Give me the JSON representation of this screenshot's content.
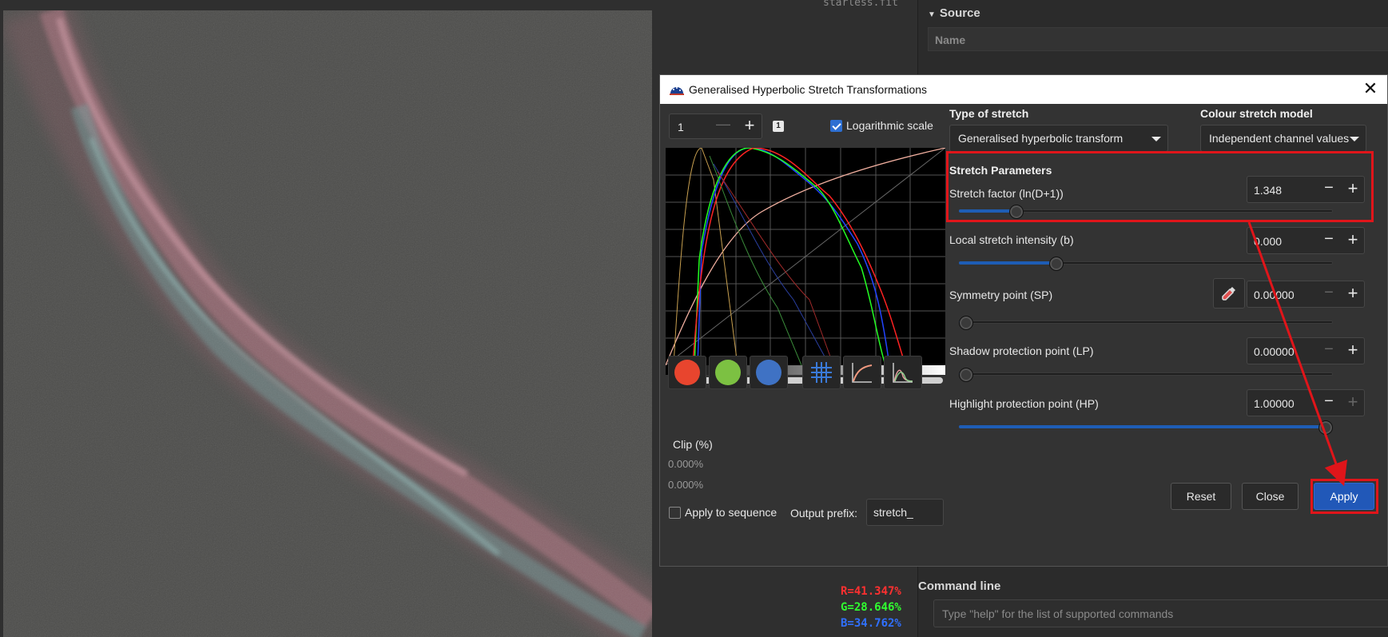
{
  "viewer": {
    "filename": "starless.fit",
    "rgb": {
      "r": "R=41.347%",
      "g": "G=28.646%",
      "b": "B=34.762%"
    }
  },
  "right_panel": {
    "source_header": "Source",
    "name_column": "Name",
    "command_line_title": "Command line",
    "command_placeholder": "Type \"help\" for the list of supported commands"
  },
  "dialog": {
    "title": "Generalised Hyperbolic Stretch Transformations",
    "close_glyph": "✕",
    "zoom_value": "1",
    "badge": "1",
    "log_scale_label": "Logarithmic scale",
    "log_scale_checked": true,
    "clip_label": "Clip (%)",
    "clip_low": "0.000%",
    "clip_high": "0.000%",
    "apply_sequence_label": "Apply to sequence",
    "apply_sequence_checked": false,
    "output_prefix_label": "Output prefix:",
    "output_prefix_value": "stretch_",
    "channel_colors": {
      "red": "#e8452e",
      "green": "#7cc142",
      "blue": "#3f72c4"
    },
    "type_of_stretch_label": "Type of stretch",
    "type_of_stretch_value": "Generalised hyperbolic transform",
    "colour_model_label": "Colour stretch model",
    "colour_model_value": "Independent channel values",
    "stretch_parameters_label": "Stretch Parameters",
    "params": [
      {
        "label": "Stretch factor (ln(D+1))",
        "value": "1.348",
        "slider": 0.14
      },
      {
        "label": "Local stretch intensity (b)",
        "value": "0.000",
        "slider": 0.25
      },
      {
        "label": "Symmetry point (SP)",
        "value": "0.00000",
        "slider": 0.0
      },
      {
        "label": "Shadow protection point (LP)",
        "value": "0.00000",
        "slider": 0.0
      },
      {
        "label": "Highlight protection point (HP)",
        "value": "1.00000",
        "slider": 1.0
      }
    ],
    "reset_label": "Reset",
    "close_label": "Close",
    "apply_label": "Apply",
    "highlight_color": "#e0151a"
  }
}
